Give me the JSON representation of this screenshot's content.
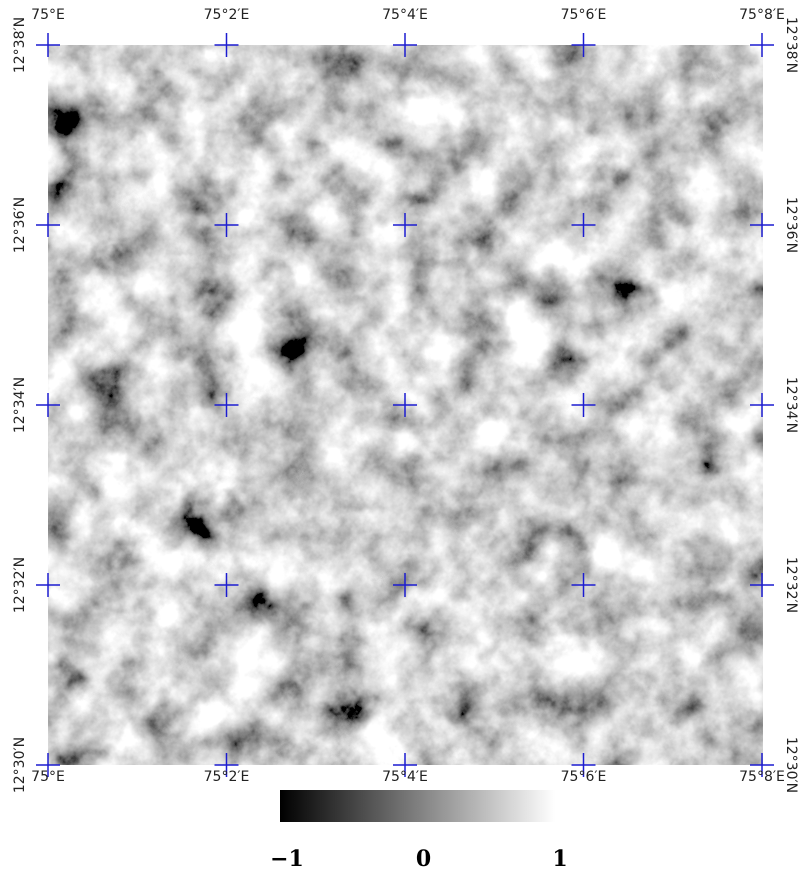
{
  "graticule": {
    "longitudes": [
      "75°E",
      "75°2′E",
      "75°4′E",
      "75°6′E",
      "75°8′E"
    ],
    "latitudes": [
      "12°38′N",
      "12°36′N",
      "12°34′N",
      "12°32′N",
      "12°30′N"
    ]
  },
  "colorbar": {
    "lim": [
      -1,
      1
    ],
    "ticks": [
      {
        "value": -1,
        "label": "−1"
      },
      0,
      1
    ]
  }
}
